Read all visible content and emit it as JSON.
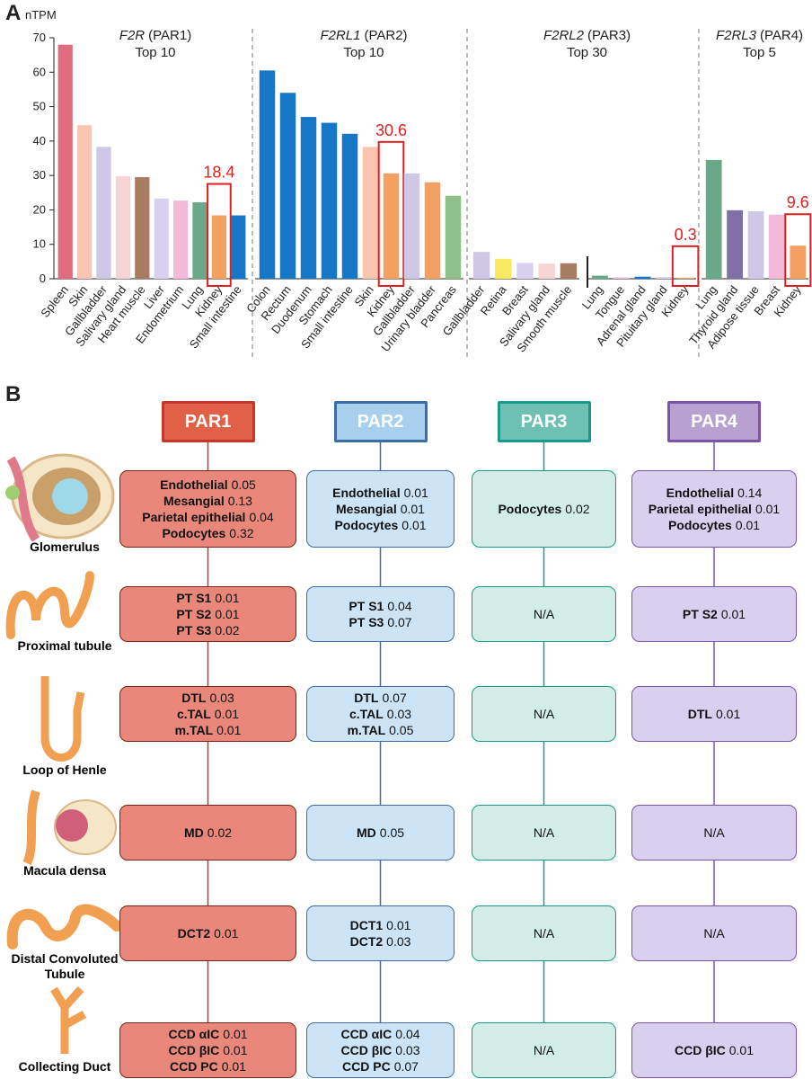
{
  "chart_data": [
    {
      "type": "bar",
      "panel": "A",
      "ylabel": "nTPM",
      "ylim": [
        0,
        70
      ],
      "yticks": [
        0,
        10,
        20,
        30,
        40,
        50,
        60,
        70
      ],
      "gene": "F2R",
      "protein": "(PAR1)",
      "subtitle": "Top 10",
      "categories": [
        "Spleen",
        "Skin",
        "Gallbladder",
        "Salivary gland",
        "Heart muscle",
        "Liver",
        "Endometrium",
        "Lung",
        "Kidney",
        "Small intestine"
      ],
      "values": [
        68,
        44.6,
        38.3,
        29.8,
        29.5,
        23.3,
        22.7,
        22.2,
        18.4,
        18.4
      ],
      "value_labels": [
        null,
        null,
        null,
        null,
        null,
        null,
        null,
        null,
        "18.4",
        null
      ],
      "colors": [
        "#e06c80",
        "#f9c4b0",
        "#cfc7e6",
        "#f7d4d4",
        "#a87c60",
        "#d8d0ee",
        "#f4b8d8",
        "#6aa88a",
        "#f4a060",
        "#1677c7"
      ]
    },
    {
      "type": "bar",
      "gene": "F2RL1",
      "protein": "(PAR2)",
      "subtitle": "Top 10",
      "categories": [
        "Colon",
        "Rectum",
        "Duodenum",
        "Stomach",
        "Small intestine",
        "Skin",
        "Kidney",
        "Gallbladder",
        "Urinary bladder",
        "Pancreas"
      ],
      "values": [
        60.5,
        54,
        47,
        45.3,
        42.1,
        38.3,
        30.6,
        30.6,
        28,
        24.1
      ],
      "value_labels": [
        null,
        null,
        null,
        null,
        null,
        null,
        "30.6",
        null,
        null,
        null
      ],
      "colors": [
        "#1677c7",
        "#1677c7",
        "#1677c7",
        "#1677c7",
        "#1677c7",
        "#f9c4b0",
        "#f4a060",
        "#cfc7e6",
        "#f4a060",
        "#8fbf88"
      ]
    },
    {
      "type": "bar",
      "gene": "F2RL2",
      "protein": "(PAR3)",
      "subtitle": "Top 30",
      "categories": [
        "Gallbladder",
        "Retina",
        "Breast",
        "Salivary gland",
        "Smooth muscle"
      ],
      "values": [
        7.8,
        5.8,
        4.6,
        4.4,
        4.5
      ],
      "colors": [
        "#cfc7e6",
        "#f8e860",
        "#d8d0ee",
        "#f7d4d4",
        "#a87c60"
      ]
    },
    {
      "type": "bar",
      "categories": [
        "Lung",
        "Tongue",
        "Adrenal gland",
        "Pituitary gland",
        "Kidney"
      ],
      "values": [
        0.9,
        0.4,
        0.6,
        0.5,
        0.3
      ],
      "value_labels": [
        null,
        null,
        null,
        null,
        "0.3"
      ],
      "colors": [
        "#6aa88a",
        "#f4b8d8",
        "#1677c7",
        "#d8d0ee",
        "#f4a060"
      ]
    },
    {
      "type": "bar",
      "gene": "F2RL3",
      "protein": "(PAR4)",
      "subtitle": "Top 5",
      "categories": [
        "Lung",
        "Thyroid gland",
        "Adipose tissue",
        "Breast",
        "Kidney"
      ],
      "values": [
        34.5,
        19.9,
        19.6,
        18.6,
        9.6
      ],
      "value_labels": [
        null,
        null,
        null,
        null,
        "9.6"
      ],
      "colors": [
        "#6aa88a",
        "#8070a8",
        "#cfc7e6",
        "#f4b8d8",
        "#f4a060"
      ]
    }
  ],
  "panel_b": {
    "label": "B",
    "segments": [
      "Glomerulus",
      "Proximal tubule",
      "Loop of Henle",
      "Macula densa",
      "Distal Convoluted Tubule",
      "Collecting Duct"
    ],
    "columns": [
      {
        "name": "PAR1",
        "cells": [
          [
            {
              "cell": "Endothelial",
              "value": 0.05
            },
            {
              "cell": "Mesangial",
              "value": 0.13
            },
            {
              "cell": "Parietal epithelial",
              "value": 0.04
            },
            {
              "cell": "Podocytes",
              "value": 0.32
            }
          ],
          [
            {
              "cell": "PT S1",
              "value": 0.01
            },
            {
              "cell": "PT S2",
              "value": 0.01
            },
            {
              "cell": "PT S3",
              "value": 0.02
            }
          ],
          [
            {
              "cell": "DTL",
              "value": 0.03
            },
            {
              "cell": "c.TAL",
              "value": 0.01
            },
            {
              "cell": "m.TAL",
              "value": 0.01
            }
          ],
          [
            {
              "cell": "MD",
              "value": 0.02
            }
          ],
          [
            {
              "cell": "DCT2",
              "value": 0.01
            }
          ],
          [
            {
              "cell": "CCD αIC",
              "value": 0.01
            },
            {
              "cell": "CCD βIC",
              "value": 0.01
            },
            {
              "cell": "CCD PC",
              "value": 0.01
            }
          ]
        ]
      },
      {
        "name": "PAR2",
        "cells": [
          [
            {
              "cell": "Endothelial",
              "value": 0.01
            },
            {
              "cell": "Mesangial",
              "value": 0.01
            },
            {
              "cell": "Podocytes",
              "value": 0.01
            }
          ],
          [
            {
              "cell": "PT S1",
              "value": 0.04
            },
            {
              "cell": "PT S3",
              "value": 0.07
            }
          ],
          [
            {
              "cell": "DTL",
              "value": 0.07
            },
            {
              "cell": "c.TAL",
              "value": 0.03
            },
            {
              "cell": "m.TAL",
              "value": 0.05
            }
          ],
          [
            {
              "cell": "MD",
              "value": 0.05
            }
          ],
          [
            {
              "cell": "DCT1",
              "value": 0.01
            },
            {
              "cell": "DCT2",
              "value": 0.03
            }
          ],
          [
            {
              "cell": "CCD αIC",
              "value": 0.04
            },
            {
              "cell": "CCD βIC",
              "value": 0.03
            },
            {
              "cell": "CCD PC",
              "value": 0.07
            }
          ]
        ]
      },
      {
        "name": "PAR3",
        "cells": [
          [
            {
              "cell": "Podocytes",
              "value": 0.02
            }
          ],
          "N/A",
          "N/A",
          "N/A",
          "N/A",
          "N/A"
        ]
      },
      {
        "name": "PAR4",
        "cells": [
          [
            {
              "cell": "Endothelial",
              "value": 0.14
            },
            {
              "cell": "Parietal epithelial",
              "value": 0.01
            },
            {
              "cell": "Podocytes",
              "value": 0.01
            }
          ],
          [
            {
              "cell": "PT S2",
              "value": 0.01
            }
          ],
          [
            {
              "cell": "DTL",
              "value": 0.01
            }
          ],
          "N/A",
          "N/A",
          [
            {
              "cell": "CCD βIC",
              "value": 0.01
            }
          ]
        ]
      }
    ]
  }
}
